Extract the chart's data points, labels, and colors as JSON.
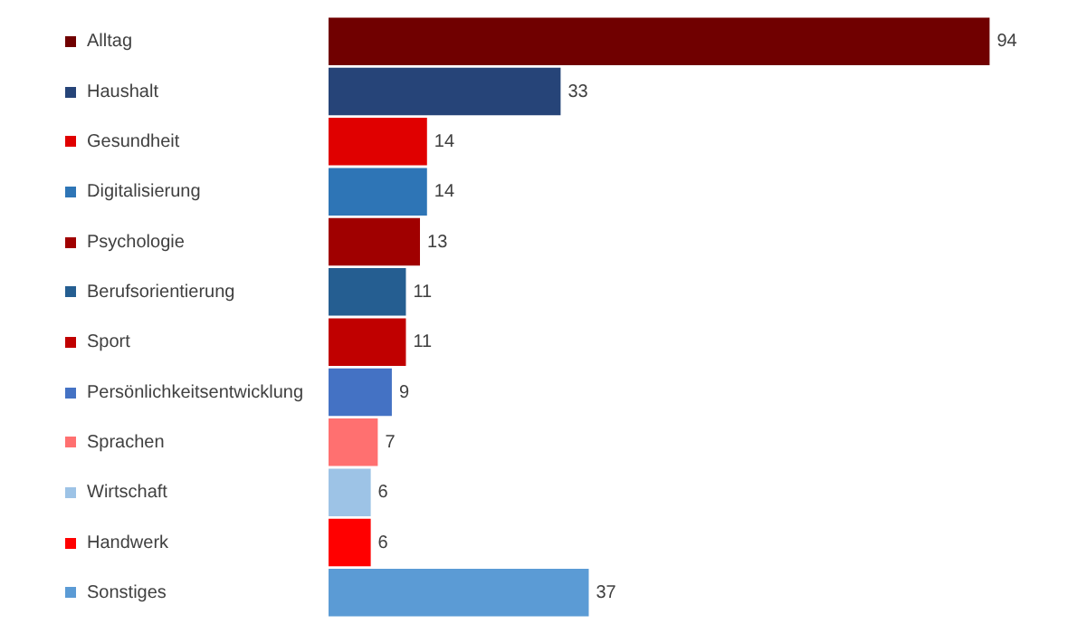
{
  "chart_data": {
    "type": "bar",
    "orientation": "horizontal",
    "categories": [
      "Alltag",
      "Haushalt",
      "Gesundheit",
      "Digitalisierung",
      "Psychologie",
      "Berufsorientierung",
      "Sport",
      "Persönlichkeitsentwicklung",
      "Sprachen",
      "Wirtschaft",
      "Handwerk",
      "Sonstiges"
    ],
    "values": [
      94,
      33,
      14,
      14,
      13,
      11,
      11,
      9,
      7,
      6,
      6,
      37
    ],
    "colors": [
      "#700000",
      "#264478",
      "#e00000",
      "#2e75b6",
      "#a00000",
      "#255e91",
      "#c00000",
      "#4472c4",
      "#ff7070",
      "#9dc3e6",
      "#ff0000",
      "#5b9bd5"
    ],
    "data_labels": true,
    "grid": false,
    "legend": false,
    "tick_labels": "y"
  }
}
